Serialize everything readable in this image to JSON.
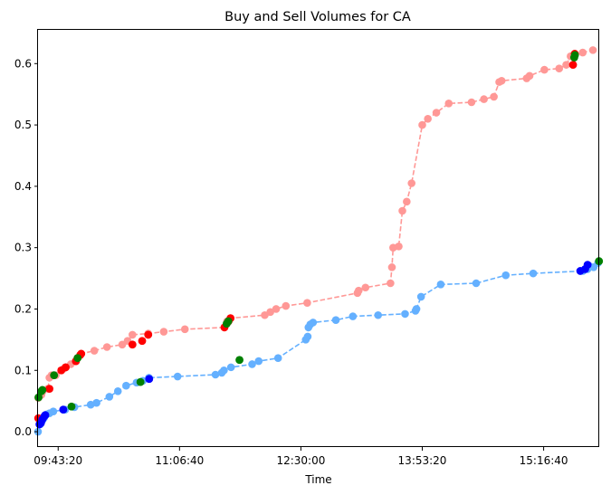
{
  "chart_data": {
    "type": "line",
    "title": "Buy and Sell Volumes for CA",
    "xlabel": "Time",
    "ylabel": "",
    "xlim": [
      "09:29:30",
      "15:54:50"
    ],
    "ylim": [
      -0.025,
      0.655
    ],
    "grid": false,
    "legend": "none",
    "x_ticks": [
      "09:43:20",
      "11:06:40",
      "12:30:00",
      "13:53:20",
      "15:16:40"
    ],
    "y_ticks": [
      0.0,
      0.1,
      0.2,
      0.3,
      0.4,
      0.5,
      0.6
    ],
    "colors": {
      "series_1": "#ff9896",
      "series_2": "#64b0ff",
      "highlight_red": "#ff0000",
      "highlight_blue": "#0000ff",
      "highlight_green": "#008000"
    },
    "series": [
      {
        "color": "#ff9896",
        "line_style": "dashed",
        "x": [
          "09:29:40",
          "09:31:50",
          "09:32:30",
          "09:36:20",
          "09:37:20",
          "09:38:50",
          "09:41:40",
          "09:45:30",
          "09:47:20",
          "09:48:30",
          "09:52:00",
          "09:55:30",
          "09:56:30",
          "09:58:30",
          "09:59:10",
          "10:08:10",
          "10:16:50",
          "10:27:20",
          "10:31:00",
          "10:34:20",
          "10:45:10",
          "10:55:50",
          "11:10:20",
          "11:37:30",
          "11:39:20",
          "11:41:40",
          "12:05:10",
          "12:09:00",
          "12:13:00",
          "12:19:40",
          "12:34:20",
          "13:08:50",
          "13:09:40",
          "13:14:20",
          "13:31:30",
          "13:32:30",
          "13:33:20",
          "13:37:10",
          "13:39:40",
          "13:42:40",
          "13:46:00",
          "13:53:20",
          "13:57:10",
          "14:03:00",
          "14:11:30",
          "14:27:10",
          "14:35:40",
          "14:42:30",
          "14:46:10",
          "14:47:50",
          "15:05:00",
          "15:07:00",
          "15:17:10",
          "15:27:20",
          "15:32:10",
          "15:35:10",
          "15:43:30",
          "15:50:30"
        ],
        "y": [
          0.055,
          0.06,
          0.065,
          0.07,
          0.088,
          0.092,
          0.092,
          0.1,
          0.103,
          0.105,
          0.11,
          0.115,
          0.12,
          0.125,
          0.127,
          0.132,
          0.138,
          0.142,
          0.148,
          0.158,
          0.16,
          0.163,
          0.167,
          0.17,
          0.18,
          0.185,
          0.19,
          0.195,
          0.2,
          0.205,
          0.21,
          0.226,
          0.23,
          0.235,
          0.242,
          0.268,
          0.3,
          0.302,
          0.36,
          0.375,
          0.405,
          0.5,
          0.51,
          0.52,
          0.535,
          0.537,
          0.542,
          0.546,
          0.57,
          0.572,
          0.576,
          0.58,
          0.59,
          0.592,
          0.598,
          0.612,
          0.618,
          0.622
        ]
      },
      {
        "color": "#64b0ff",
        "line_style": "dashed",
        "x": [
          "09:29:30",
          "09:31:00",
          "09:32:20",
          "09:33:30",
          "09:35:10",
          "09:37:20",
          "09:40:00",
          "09:48:10",
          "09:54:30",
          "10:05:40",
          "10:09:40",
          "10:18:30",
          "10:24:20",
          "10:30:00",
          "10:37:10",
          "10:41:30",
          "10:45:40",
          "11:05:20",
          "11:31:20",
          "11:35:40",
          "11:37:10",
          "11:42:00",
          "11:56:30",
          "12:01:00",
          "12:14:20",
          "12:33:20",
          "12:34:40",
          "12:35:10",
          "12:36:30",
          "12:38:20",
          "12:54:00",
          "13:05:40",
          "13:23:00",
          "13:41:30",
          "13:48:40",
          "13:49:20",
          "13:52:30",
          "14:06:00",
          "14:30:20",
          "14:50:40",
          "15:09:30",
          "15:43:40",
          "15:46:50",
          "15:48:10",
          "15:51:00",
          "15:54:00"
        ],
        "y": [
          0.0,
          0.012,
          0.018,
          0.022,
          0.028,
          0.03,
          0.033,
          0.036,
          0.04,
          0.044,
          0.047,
          0.057,
          0.066,
          0.075,
          0.08,
          0.083,
          0.088,
          0.09,
          0.093,
          0.096,
          0.1,
          0.105,
          0.11,
          0.115,
          0.12,
          0.15,
          0.155,
          0.17,
          0.175,
          0.178,
          0.182,
          0.188,
          0.19,
          0.192,
          0.197,
          0.2,
          0.22,
          0.24,
          0.242,
          0.255,
          0.258,
          0.262,
          0.265,
          0.27,
          0.268,
          0.275
        ]
      }
    ],
    "highlight_points": [
      {
        "color": "#ff0000",
        "x": [
          "09:29:40",
          "09:37:20",
          "09:45:30",
          "09:48:30",
          "09:55:30",
          "09:58:30",
          "09:59:10",
          "10:34:20",
          "10:41:00",
          "10:45:10",
          "11:37:30",
          "11:40:20",
          "11:41:40",
          "15:36:50",
          "15:38:00"
        ],
        "y": [
          0.022,
          0.07,
          0.1,
          0.105,
          0.115,
          0.125,
          0.127,
          0.142,
          0.148,
          0.158,
          0.17,
          0.18,
          0.185,
          0.598,
          0.616
        ]
      },
      {
        "color": "#0000ff",
        "x": [
          "09:30:30",
          "09:31:30",
          "09:32:30",
          "09:33:50",
          "09:34:30",
          "09:46:50",
          "10:45:50",
          "15:41:50",
          "15:45:10",
          "15:46:50"
        ],
        "y": [
          0.012,
          0.014,
          0.02,
          0.025,
          0.027,
          0.036,
          0.086,
          0.262,
          0.265,
          0.272
        ]
      },
      {
        "color": "#008000",
        "x": [
          "09:29:50",
          "09:31:50",
          "09:32:30",
          "09:40:30",
          "09:52:30",
          "09:56:40",
          "10:39:50",
          "11:39:00",
          "11:40:10",
          "11:47:50",
          "15:37:40",
          "15:38:10",
          "15:54:40"
        ],
        "y": [
          0.056,
          0.066,
          0.068,
          0.092,
          0.041,
          0.12,
          0.081,
          0.176,
          0.18,
          0.117,
          0.61,
          0.614,
          0.278
        ]
      }
    ]
  }
}
